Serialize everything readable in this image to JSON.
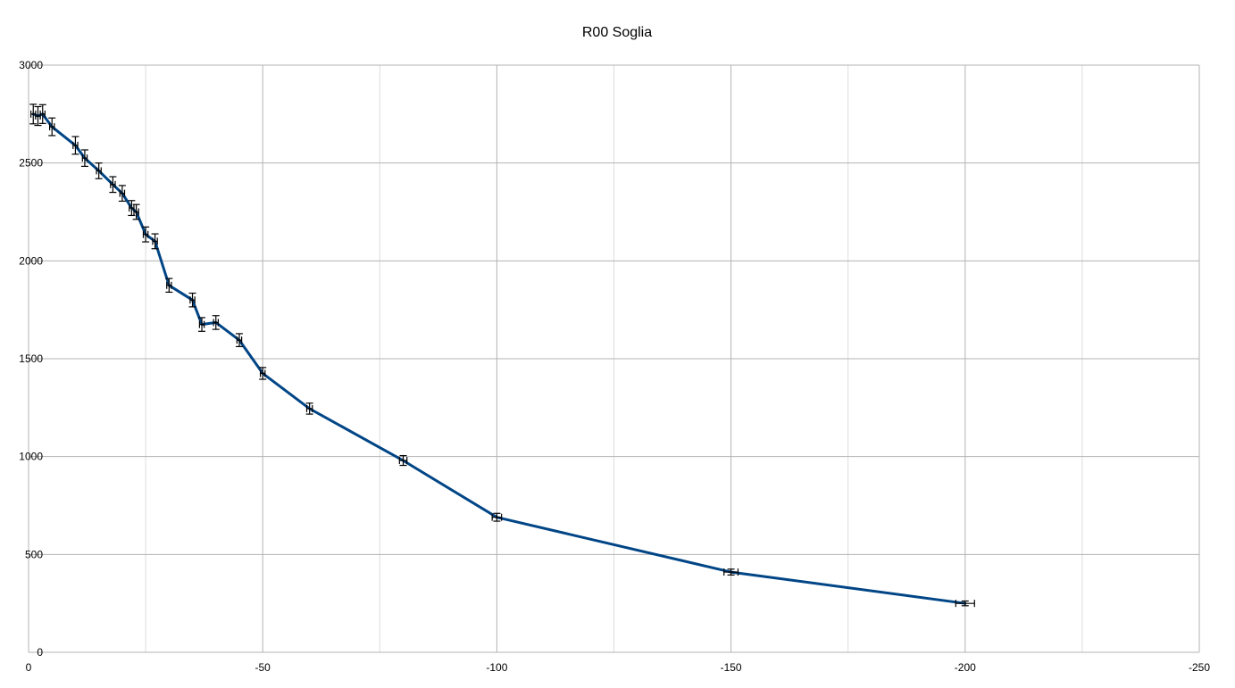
{
  "chart_data": {
    "type": "line",
    "title": "R00 Soglia",
    "xlabel": "",
    "ylabel": "",
    "xlim": [
      0,
      -250
    ],
    "ylim": [
      0,
      3000
    ],
    "x_major_ticks": [
      0,
      -50,
      -100,
      -150,
      -200,
      -250
    ],
    "x_minor_gridlines": [
      -25,
      -75,
      -125,
      -175,
      -225
    ],
    "y_major_ticks": [
      0,
      500,
      1000,
      1500,
      2000,
      2500,
      3000
    ],
    "grid": true,
    "legend": "none",
    "colors": {
      "line": "#004586",
      "error_bars": "#000000",
      "grid": "#b3b3b3"
    },
    "series": [
      {
        "x": [
          -1,
          -2,
          -3,
          -5,
          -10,
          -12,
          -15,
          -18,
          -20,
          -22,
          -23,
          -25,
          -27,
          -30,
          -35,
          -37,
          -40,
          -45,
          -50,
          -60,
          -80,
          -100,
          -150,
          -200
        ],
        "y": [
          2750,
          2740,
          2750,
          2685,
          2590,
          2525,
          2460,
          2390,
          2345,
          2270,
          2250,
          2135,
          2100,
          1875,
          1800,
          1675,
          1685,
          1595,
          1425,
          1245,
          980,
          690,
          410,
          250
        ],
        "y_error": [
          50,
          48,
          48,
          45,
          45,
          42,
          40,
          40,
          40,
          38,
          38,
          38,
          38,
          35,
          35,
          35,
          35,
          33,
          30,
          28,
          25,
          20,
          15,
          12
        ],
        "x_error": [
          0.5,
          0.5,
          0.5,
          0.5,
          0.5,
          0.5,
          0.5,
          0.5,
          0.5,
          0.5,
          0.5,
          0.5,
          0.5,
          0.5,
          0.5,
          0.5,
          0.5,
          0.5,
          0.5,
          0.6,
          0.8,
          1.0,
          1.5,
          2.0
        ]
      }
    ]
  }
}
